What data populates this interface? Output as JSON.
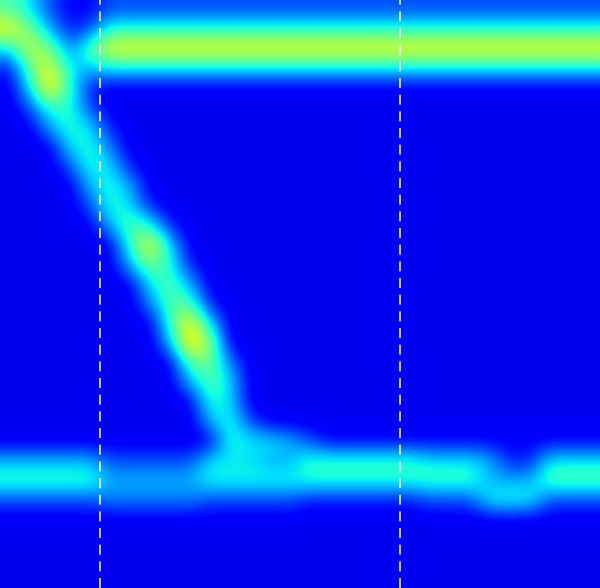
{
  "chart_data": {
    "type": "heatmap",
    "tick_labels": false,
    "color_range": [
      0,
      1
    ],
    "xlim": [
      0,
      30
    ],
    "ylim": [
      30,
      0
    ],
    "vlines": [
      5,
      20
    ],
    "cells": [
      [
        0.45,
        0.35,
        0.2,
        0.12,
        0.12,
        0.2,
        0.2,
        0.2,
        0.2,
        0.2,
        0.2,
        0.2,
        0.2,
        0.2,
        0.2,
        0.2,
        0.2,
        0.2,
        0.2,
        0.2,
        0.2,
        0.2,
        0.2,
        0.2,
        0.2,
        0.2,
        0.2,
        0.2,
        0.2,
        0.2
      ],
      [
        0.65,
        0.5,
        0.3,
        0.15,
        0.2,
        0.4,
        0.4,
        0.4,
        0.4,
        0.4,
        0.4,
        0.4,
        0.4,
        0.4,
        0.4,
        0.4,
        0.4,
        0.4,
        0.4,
        0.4,
        0.4,
        0.4,
        0.4,
        0.4,
        0.4,
        0.4,
        0.4,
        0.4,
        0.4,
        0.4
      ],
      [
        0.35,
        0.6,
        0.5,
        0.25,
        0.45,
        0.65,
        0.65,
        0.65,
        0.65,
        0.65,
        0.65,
        0.65,
        0.65,
        0.65,
        0.65,
        0.65,
        0.65,
        0.65,
        0.65,
        0.65,
        0.65,
        0.65,
        0.65,
        0.65,
        0.65,
        0.65,
        0.65,
        0.65,
        0.65,
        0.65
      ],
      [
        0.15,
        0.45,
        0.65,
        0.35,
        0.3,
        0.35,
        0.35,
        0.35,
        0.35,
        0.35,
        0.35,
        0.35,
        0.35,
        0.35,
        0.35,
        0.35,
        0.35,
        0.35,
        0.35,
        0.35,
        0.35,
        0.35,
        0.35,
        0.35,
        0.35,
        0.35,
        0.35,
        0.35,
        0.35,
        0.35
      ],
      [
        0.1,
        0.35,
        0.7,
        0.4,
        0.15,
        0.1,
        0.1,
        0.1,
        0.1,
        0.1,
        0.1,
        0.1,
        0.1,
        0.1,
        0.1,
        0.1,
        0.1,
        0.1,
        0.1,
        0.1,
        0.1,
        0.1,
        0.1,
        0.1,
        0.1,
        0.1,
        0.1,
        0.1,
        0.1,
        0.1
      ],
      [
        0.1,
        0.2,
        0.4,
        0.4,
        0.2,
        0.1,
        0.1,
        0.1,
        0.1,
        0.1,
        0.1,
        0.1,
        0.1,
        0.1,
        0.1,
        0.1,
        0.1,
        0.1,
        0.1,
        0.1,
        0.1,
        0.1,
        0.1,
        0.1,
        0.1,
        0.1,
        0.1,
        0.1,
        0.1,
        0.1
      ],
      [
        0.1,
        0.1,
        0.3,
        0.4,
        0.35,
        0.15,
        0.1,
        0.1,
        0.1,
        0.1,
        0.1,
        0.1,
        0.1,
        0.1,
        0.1,
        0.1,
        0.1,
        0.1,
        0.1,
        0.1,
        0.1,
        0.1,
        0.1,
        0.1,
        0.1,
        0.1,
        0.1,
        0.1,
        0.1,
        0.1
      ],
      [
        0.1,
        0.1,
        0.1,
        0.35,
        0.4,
        0.25,
        0.1,
        0.1,
        0.1,
        0.1,
        0.1,
        0.1,
        0.1,
        0.1,
        0.1,
        0.1,
        0.1,
        0.1,
        0.1,
        0.1,
        0.1,
        0.1,
        0.1,
        0.1,
        0.1,
        0.1,
        0.1,
        0.1,
        0.1,
        0.1
      ],
      [
        0.1,
        0.1,
        0.1,
        0.2,
        0.4,
        0.35,
        0.15,
        0.1,
        0.1,
        0.1,
        0.1,
        0.1,
        0.1,
        0.1,
        0.1,
        0.1,
        0.1,
        0.1,
        0.1,
        0.1,
        0.1,
        0.1,
        0.1,
        0.1,
        0.1,
        0.1,
        0.1,
        0.1,
        0.1,
        0.1
      ],
      [
        0.1,
        0.1,
        0.1,
        0.1,
        0.3,
        0.4,
        0.3,
        0.1,
        0.1,
        0.1,
        0.1,
        0.1,
        0.1,
        0.1,
        0.1,
        0.1,
        0.1,
        0.1,
        0.1,
        0.1,
        0.1,
        0.1,
        0.1,
        0.1,
        0.1,
        0.1,
        0.1,
        0.1,
        0.1,
        0.1
      ],
      [
        0.1,
        0.1,
        0.1,
        0.1,
        0.2,
        0.4,
        0.35,
        0.15,
        0.1,
        0.1,
        0.1,
        0.1,
        0.1,
        0.1,
        0.1,
        0.1,
        0.1,
        0.1,
        0.1,
        0.1,
        0.1,
        0.1,
        0.1,
        0.1,
        0.1,
        0.1,
        0.1,
        0.1,
        0.1,
        0.1
      ],
      [
        0.1,
        0.1,
        0.1,
        0.1,
        0.1,
        0.3,
        0.45,
        0.4,
        0.15,
        0.1,
        0.1,
        0.1,
        0.1,
        0.1,
        0.1,
        0.1,
        0.1,
        0.1,
        0.1,
        0.1,
        0.1,
        0.1,
        0.1,
        0.1,
        0.1,
        0.1,
        0.1,
        0.1,
        0.1,
        0.1
      ],
      [
        0.1,
        0.1,
        0.1,
        0.1,
        0.1,
        0.1,
        0.4,
        0.65,
        0.35,
        0.1,
        0.1,
        0.1,
        0.1,
        0.1,
        0.1,
        0.1,
        0.1,
        0.1,
        0.1,
        0.1,
        0.1,
        0.1,
        0.1,
        0.1,
        0.1,
        0.1,
        0.1,
        0.1,
        0.1,
        0.1
      ],
      [
        0.1,
        0.1,
        0.1,
        0.1,
        0.1,
        0.1,
        0.3,
        0.5,
        0.4,
        0.15,
        0.1,
        0.1,
        0.1,
        0.1,
        0.1,
        0.1,
        0.1,
        0.1,
        0.1,
        0.1,
        0.1,
        0.1,
        0.1,
        0.1,
        0.1,
        0.1,
        0.1,
        0.1,
        0.1,
        0.1
      ],
      [
        0.1,
        0.1,
        0.1,
        0.1,
        0.1,
        0.1,
        0.1,
        0.35,
        0.45,
        0.3,
        0.1,
        0.1,
        0.1,
        0.1,
        0.1,
        0.1,
        0.1,
        0.1,
        0.1,
        0.1,
        0.1,
        0.1,
        0.1,
        0.1,
        0.1,
        0.1,
        0.1,
        0.1,
        0.1,
        0.1
      ],
      [
        0.1,
        0.1,
        0.1,
        0.1,
        0.1,
        0.1,
        0.1,
        0.25,
        0.45,
        0.45,
        0.15,
        0.1,
        0.1,
        0.1,
        0.1,
        0.1,
        0.1,
        0.1,
        0.1,
        0.1,
        0.1,
        0.1,
        0.1,
        0.1,
        0.1,
        0.1,
        0.1,
        0.1,
        0.1,
        0.1
      ],
      [
        0.1,
        0.1,
        0.1,
        0.1,
        0.1,
        0.1,
        0.1,
        0.1,
        0.4,
        0.68,
        0.35,
        0.1,
        0.1,
        0.1,
        0.1,
        0.1,
        0.1,
        0.1,
        0.1,
        0.1,
        0.1,
        0.1,
        0.1,
        0.1,
        0.1,
        0.1,
        0.1,
        0.1,
        0.1,
        0.1
      ],
      [
        0.1,
        0.1,
        0.1,
        0.1,
        0.1,
        0.1,
        0.1,
        0.1,
        0.3,
        0.7,
        0.55,
        0.1,
        0.1,
        0.1,
        0.1,
        0.1,
        0.1,
        0.1,
        0.1,
        0.1,
        0.1,
        0.1,
        0.1,
        0.1,
        0.1,
        0.1,
        0.1,
        0.1,
        0.1,
        0.1
      ],
      [
        0.1,
        0.1,
        0.1,
        0.1,
        0.1,
        0.1,
        0.1,
        0.1,
        0.1,
        0.45,
        0.5,
        0.25,
        0.1,
        0.1,
        0.1,
        0.1,
        0.1,
        0.1,
        0.1,
        0.1,
        0.1,
        0.1,
        0.1,
        0.1,
        0.1,
        0.1,
        0.1,
        0.1,
        0.1,
        0.1
      ],
      [
        0.1,
        0.1,
        0.1,
        0.1,
        0.1,
        0.1,
        0.1,
        0.1,
        0.1,
        0.3,
        0.45,
        0.35,
        0.1,
        0.1,
        0.1,
        0.1,
        0.1,
        0.1,
        0.1,
        0.1,
        0.1,
        0.1,
        0.1,
        0.1,
        0.1,
        0.1,
        0.1,
        0.1,
        0.1,
        0.1
      ],
      [
        0.1,
        0.1,
        0.1,
        0.1,
        0.1,
        0.1,
        0.1,
        0.1,
        0.1,
        0.1,
        0.4,
        0.35,
        0.1,
        0.1,
        0.1,
        0.1,
        0.1,
        0.1,
        0.1,
        0.1,
        0.1,
        0.1,
        0.1,
        0.1,
        0.1,
        0.1,
        0.1,
        0.1,
        0.1,
        0.1
      ],
      [
        0.1,
        0.1,
        0.1,
        0.1,
        0.1,
        0.1,
        0.1,
        0.1,
        0.1,
        0.1,
        0.3,
        0.4,
        0.2,
        0.1,
        0.1,
        0.1,
        0.1,
        0.1,
        0.1,
        0.1,
        0.1,
        0.1,
        0.1,
        0.1,
        0.1,
        0.1,
        0.1,
        0.1,
        0.1,
        0.1
      ],
      [
        0.1,
        0.1,
        0.1,
        0.1,
        0.1,
        0.1,
        0.1,
        0.1,
        0.1,
        0.1,
        0.1,
        0.4,
        0.35,
        0.35,
        0.3,
        0.2,
        0.12,
        0.12,
        0.12,
        0.12,
        0.12,
        0.12,
        0.12,
        0.12,
        0.12,
        0.12,
        0.12,
        0.12,
        0.12,
        0.12
      ],
      [
        0.3,
        0.3,
        0.3,
        0.3,
        0.3,
        0.2,
        0.2,
        0.2,
        0.2,
        0.2,
        0.35,
        0.35,
        0.35,
        0.3,
        0.3,
        0.4,
        0.4,
        0.4,
        0.4,
        0.4,
        0.4,
        0.35,
        0.35,
        0.35,
        0.3,
        0.15,
        0.15,
        0.35,
        0.35,
        0.35
      ],
      [
        0.42,
        0.42,
        0.42,
        0.42,
        0.42,
        0.3,
        0.3,
        0.3,
        0.3,
        0.3,
        0.38,
        0.38,
        0.38,
        0.38,
        0.38,
        0.4,
        0.4,
        0.4,
        0.4,
        0.4,
        0.4,
        0.42,
        0.42,
        0.42,
        0.3,
        0.3,
        0.3,
        0.45,
        0.45,
        0.45
      ],
      [
        0.2,
        0.2,
        0.2,
        0.2,
        0.2,
        0.25,
        0.25,
        0.25,
        0.25,
        0.25,
        0.2,
        0.2,
        0.2,
        0.2,
        0.2,
        0.15,
        0.15,
        0.15,
        0.15,
        0.15,
        0.15,
        0.2,
        0.2,
        0.2,
        0.38,
        0.38,
        0.38,
        0.2,
        0.2,
        0.2
      ],
      [
        0.1,
        0.1,
        0.1,
        0.1,
        0.1,
        0.1,
        0.1,
        0.1,
        0.1,
        0.1,
        0.1,
        0.1,
        0.1,
        0.1,
        0.1,
        0.1,
        0.1,
        0.1,
        0.1,
        0.1,
        0.1,
        0.1,
        0.1,
        0.1,
        0.1,
        0.1,
        0.1,
        0.1,
        0.1,
        0.1
      ],
      [
        0.1,
        0.1,
        0.1,
        0.1,
        0.1,
        0.1,
        0.1,
        0.1,
        0.1,
        0.1,
        0.1,
        0.1,
        0.1,
        0.1,
        0.1,
        0.1,
        0.1,
        0.1,
        0.1,
        0.1,
        0.1,
        0.1,
        0.1,
        0.1,
        0.1,
        0.1,
        0.1,
        0.1,
        0.1,
        0.1
      ],
      [
        0.1,
        0.1,
        0.1,
        0.1,
        0.1,
        0.1,
        0.1,
        0.1,
        0.1,
        0.1,
        0.1,
        0.1,
        0.1,
        0.1,
        0.1,
        0.1,
        0.1,
        0.1,
        0.1,
        0.1,
        0.1,
        0.1,
        0.1,
        0.1,
        0.1,
        0.1,
        0.1,
        0.1,
        0.1,
        0.1
      ],
      [
        0.1,
        0.1,
        0.1,
        0.1,
        0.1,
        0.1,
        0.1,
        0.1,
        0.1,
        0.1,
        0.1,
        0.1,
        0.1,
        0.1,
        0.1,
        0.1,
        0.1,
        0.1,
        0.1,
        0.1,
        0.1,
        0.1,
        0.1,
        0.1,
        0.1,
        0.1,
        0.1,
        0.1,
        0.1,
        0.1
      ]
    ]
  }
}
